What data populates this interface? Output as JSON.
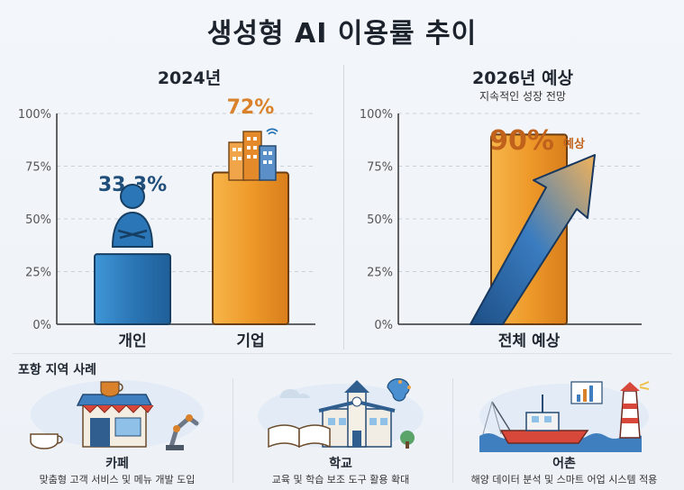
{
  "title": "생성형 AI 이용률 추이",
  "chart_data": [
    {
      "type": "bar",
      "title": "2024년",
      "categories": [
        "개인",
        "기업"
      ],
      "values": [
        33.3,
        72
      ],
      "value_labels": [
        "33.3%",
        "72%"
      ],
      "ylim": [
        0,
        100
      ],
      "yticks": [
        0,
        25,
        50,
        75,
        100
      ],
      "ytick_labels": [
        "0%",
        "25%",
        "50%",
        "75%",
        "100%"
      ],
      "colors": [
        "#2e7fbf",
        "#ef9a2c"
      ],
      "label_colors": [
        "#1f4e7a",
        "#d9822b"
      ]
    },
    {
      "type": "bar",
      "title": "2026년 예상",
      "subtitle": "지속적인 성장 전망",
      "categories": [
        "전체 예상"
      ],
      "values": [
        90
      ],
      "value_labels": [
        "90%"
      ],
      "value_suffix": "예상",
      "ylim": [
        0,
        100
      ],
      "yticks": [
        0,
        25,
        50,
        75,
        100
      ],
      "ytick_labels": [
        "0%",
        "25%",
        "50%",
        "75%",
        "100%"
      ],
      "colors": [
        "#ef9a2c"
      ],
      "label_colors": [
        "#c0621b"
      ]
    }
  ],
  "cases": {
    "title": "포항 지역 사례",
    "items": [
      {
        "name": "카페",
        "desc": "맞춤형 고객 서비스 및 메뉴 개발 도입"
      },
      {
        "name": "학교",
        "desc": "교육 및 학습 보조 도구 활용 확대"
      },
      {
        "name": "어촌",
        "desc": "해양 데이터 분석 및 스마트 어업 시스템 적용"
      }
    ]
  }
}
